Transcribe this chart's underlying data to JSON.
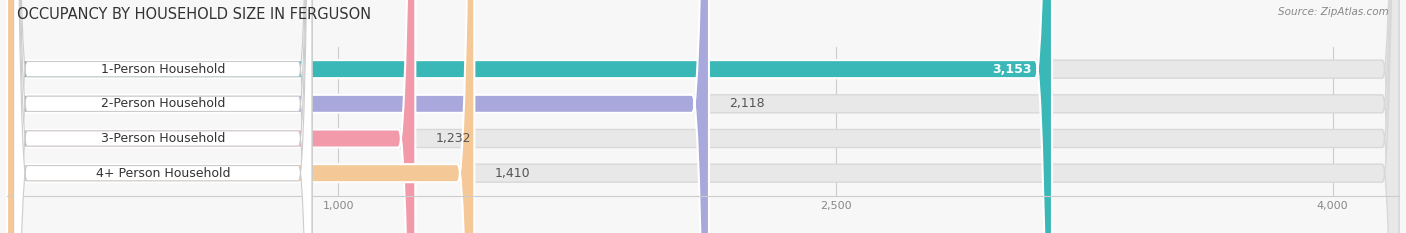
{
  "title": "OCCUPANCY BY HOUSEHOLD SIZE IN FERGUSON",
  "source": "Source: ZipAtlas.com",
  "categories": [
    "1-Person Household",
    "2-Person Household",
    "3-Person Household",
    "4+ Person Household"
  ],
  "values": [
    3153,
    2118,
    1232,
    1410
  ],
  "bar_colors": [
    "#3ab8b8",
    "#a8a8dc",
    "#f299aa",
    "#f5c898"
  ],
  "value_colors": [
    "#ffffff",
    "#666666",
    "#666666",
    "#666666"
  ],
  "xlim_max": 4200,
  "xticks": [
    1000,
    2500,
    4000
  ],
  "xtick_labels": [
    "1,000",
    "2,500",
    "4,000"
  ],
  "bg_color": "#f7f7f7",
  "bar_bg_color": "#e8e8e8",
  "bar_bg_outline": "#d8d8d8",
  "title_fontsize": 10.5,
  "source_fontsize": 7.5,
  "label_fontsize": 9,
  "value_fontsize": 9,
  "bar_height": 0.52,
  "figsize": [
    14.06,
    2.33
  ],
  "dpi": 100
}
